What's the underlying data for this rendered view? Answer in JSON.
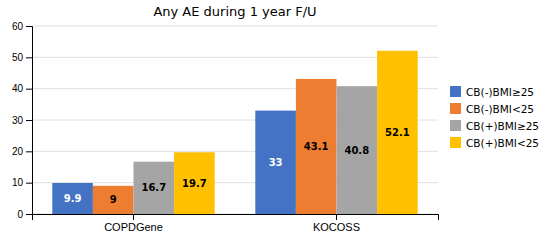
{
  "chart_data": {
    "type": "bar",
    "title": "Any AE during 1 year F/U",
    "categories": [
      "COPDGene",
      "KOCOSS"
    ],
    "series": [
      {
        "name": "CB(-)BMI≥25",
        "color": "#4472C4",
        "values": [
          9.9,
          33
        ]
      },
      {
        "name": "CB(-)BMI<25",
        "color": "#ED7D31",
        "values": [
          9,
          43.1
        ]
      },
      {
        "name": "CB(+)BMI≥25",
        "color": "#A5A5A5",
        "values": [
          16.7,
          40.8
        ]
      },
      {
        "name": "CB(+)BMI<25",
        "color": "#FFC000",
        "values": [
          19.7,
          52.1
        ]
      }
    ],
    "ylim": [
      0,
      60
    ],
    "yticks": [
      0,
      10,
      20,
      30,
      40,
      50,
      60
    ],
    "grid": true,
    "data_labels": true,
    "legend": "right"
  }
}
